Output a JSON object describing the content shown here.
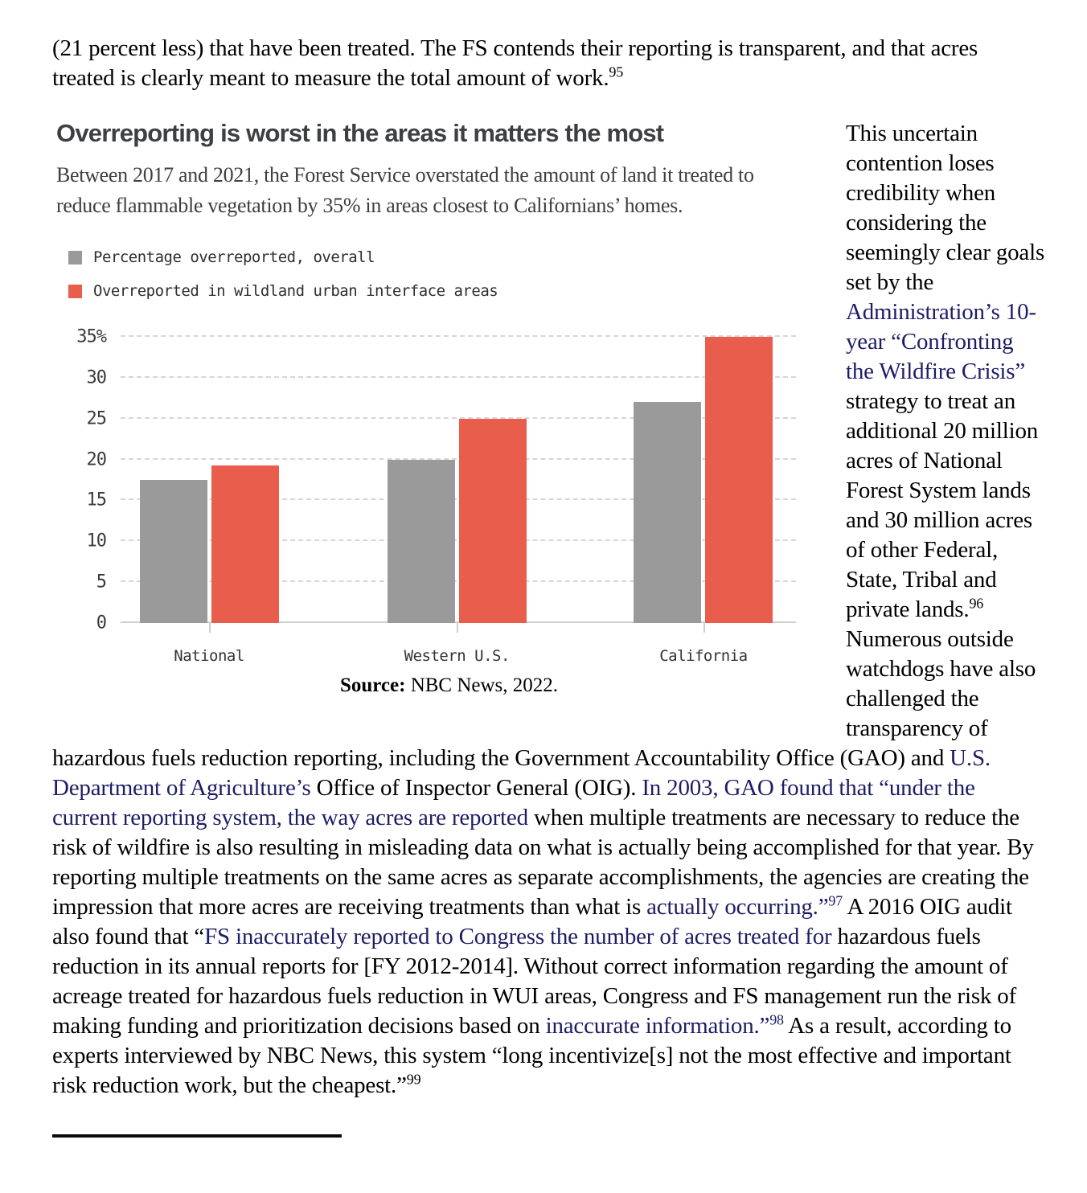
{
  "paragraphs": {
    "top": [
      {
        "t": "(21 percent less) that have been treated. The FS contends their reporting is transparent, and that acres treated is clearly meant to measure the total amount of work.",
        "s": "n"
      },
      {
        "t": "95",
        "s": "n",
        "sup": true
      }
    ],
    "main": [
      {
        "t": "This uncertain contention loses credibility when considering the seemingly clear goals set by the ",
        "s": "n"
      },
      {
        "t": "Administration’s 10-year “Confronting the Wildfire Crisis” ",
        "s": "a"
      },
      {
        "t": "strategy to treat an additional 20 million acres of National Forest System lands and 30 million acres of other Federal, State, Tribal and private lands.",
        "s": "n"
      },
      {
        "t": "96",
        "s": "n",
        "sup": true
      },
      {
        "t": " Numerous outside watchdogs have also challenged the transparency of hazardous fuels reduction reporting, including the Government Accountability Office (GAO) and ",
        "s": "n"
      },
      {
        "t": "U.S. Department of Agriculture’s ",
        "s": "a"
      },
      {
        "t": "Office of Inspector General (OIG). ",
        "s": "n"
      },
      {
        "t": "In 2003, GAO found that “under the current reporting system, the way acres are reported ",
        "s": "a"
      },
      {
        "t": "when multiple treatments are necessary to reduce the risk of wildfire is also resulting in misleading data on what is actually being accomplished for that year. By reporting multiple treatments on the same acres as separate accomplishments, the agencies are creating the impression that more acres are receiving treatments than what is ",
        "s": "n"
      },
      {
        "t": "actually occurring.”",
        "s": "a"
      },
      {
        "t": "97",
        "s": "a",
        "sup": true
      },
      {
        "t": " A 2016 OIG audit also found that “",
        "s": "n"
      },
      {
        "t": "FS inaccurately reported to Congress the number of acres treated for ",
        "s": "a"
      },
      {
        "t": "hazardous fuels reduction in its annual reports for [FY 2012-2014]. Without correct information regarding the amount of acreage treated for hazardous fuels reduction in WUI areas, Congress and FS management run the risk of making funding and prioritization decisions based on ",
        "s": "n"
      },
      {
        "t": "inaccurate information.”",
        "s": "a"
      },
      {
        "t": "98",
        "s": "a",
        "sup": true
      },
      {
        "t": " As a result, according to experts interviewed by NBC News, this system “long incentivize[s] not the most effective and important risk reduction work, but the cheapest.”",
        "s": "n"
      },
      {
        "t": "99",
        "s": "n",
        "sup": true
      }
    ]
  },
  "figure": {
    "title": "Overreporting is worst in the areas it matters the most",
    "subtitle": "Between 2017 and 2021, the Forest Service overstated the amount of land it treated to reduce flammable vegetation by 35% in areas closest to Californians’ homes.",
    "source_label": "Source:",
    "source_text": " NBC News, 2022."
  },
  "chart_data": {
    "type": "bar",
    "title": "Overreporting is worst in the areas it matters the most",
    "subtitle": "Between 2017 and 2021, the Forest Service overstated the amount of land it treated to reduce flammable vegetation by 35% in areas closest to Californians’ homes.",
    "categories": [
      "National",
      "Western U.S.",
      "California"
    ],
    "series": [
      {
        "name": "Percentage overreported, overall",
        "color": "#9A9A9A",
        "values": [
          17.5,
          20,
          27
        ]
      },
      {
        "name": "Overreported in wildland urban interface areas",
        "color": "#E95D4D",
        "values": [
          19.3,
          25,
          35
        ]
      }
    ],
    "ylim": [
      0,
      35
    ],
    "yticks": [
      0,
      5,
      10,
      15,
      20,
      25,
      30,
      35
    ],
    "ytick_labels": [
      "0",
      "5",
      "10",
      "15",
      "20",
      "25",
      "30",
      "35%"
    ],
    "grid": "horizontal-dashed",
    "legend_position": "top-left",
    "source": "NBC News, 2022"
  },
  "colors": {
    "bar_gray": "#9A9A9A",
    "bar_red": "#E95D4D",
    "link_navy": "#1D1D66",
    "gridline": "#D6D6D6",
    "axis_text": "#3A3A3A",
    "title_text": "#3D3F42"
  }
}
